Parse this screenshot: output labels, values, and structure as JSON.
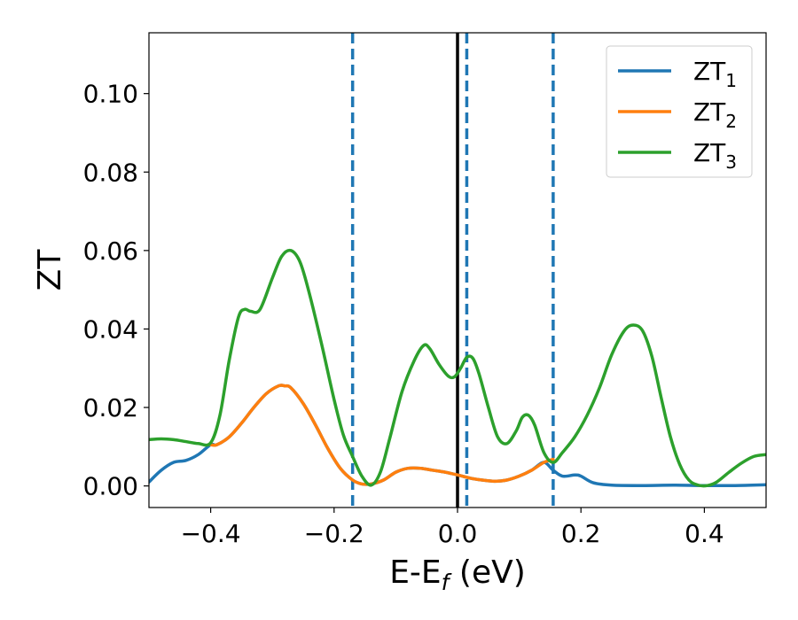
{
  "chart_data": {
    "type": "line",
    "title": "",
    "xlabel": "E-E",
    "xlabel_sub": "f",
    "xlabel_unit": " (eV)",
    "ylabel": "ZT",
    "xlim": [
      -0.5,
      0.5
    ],
    "ylim": [
      -0.0055,
      0.1155
    ],
    "xticks": [
      -0.4,
      -0.2,
      0.0,
      0.2,
      0.4
    ],
    "xtick_labels": [
      "−0.4",
      "−0.2",
      "0.0",
      "0.2",
      "0.4"
    ],
    "yticks": [
      0.0,
      0.02,
      0.04,
      0.06,
      0.08,
      0.1
    ],
    "ytick_labels": [
      "0.00",
      "0.02",
      "0.04",
      "0.06",
      "0.08",
      "0.10"
    ],
    "grid": false,
    "legend_position": "top-right",
    "fermi_line": {
      "x": 0.0,
      "color": "#000000"
    },
    "dashed_vlines": {
      "x": [
        -0.17,
        0.015,
        0.155
      ],
      "color": "#1f77b4"
    },
    "series": [
      {
        "name": "ZT",
        "name_sub": "1",
        "color": "#1f77b4",
        "points": [
          [
            -0.5,
            0.001
          ],
          [
            -0.48,
            0.004
          ],
          [
            -0.46,
            0.006
          ],
          [
            -0.44,
            0.0065
          ],
          [
            -0.42,
            0.008
          ],
          [
            -0.4,
            0.0105
          ],
          [
            -0.39,
            0.0105
          ],
          [
            -0.37,
            0.0125
          ],
          [
            -0.35,
            0.016
          ],
          [
            -0.33,
            0.02
          ],
          [
            -0.31,
            0.0235
          ],
          [
            -0.29,
            0.0255
          ],
          [
            -0.28,
            0.0255
          ],
          [
            -0.27,
            0.025
          ],
          [
            -0.25,
            0.021
          ],
          [
            -0.23,
            0.0155
          ],
          [
            -0.21,
            0.0095
          ],
          [
            -0.19,
            0.0045
          ],
          [
            -0.17,
            0.0015
          ],
          [
            -0.155,
            0.0005
          ],
          [
            -0.14,
            0.0005
          ],
          [
            -0.12,
            0.0015
          ],
          [
            -0.1,
            0.0035
          ],
          [
            -0.08,
            0.0045
          ],
          [
            -0.06,
            0.0045
          ],
          [
            -0.04,
            0.004
          ],
          [
            -0.02,
            0.0035
          ],
          [
            0.0,
            0.0028
          ],
          [
            0.02,
            0.002
          ],
          [
            0.04,
            0.0015
          ],
          [
            0.06,
            0.0012
          ],
          [
            0.08,
            0.0015
          ],
          [
            0.1,
            0.0025
          ],
          [
            0.12,
            0.004
          ],
          [
            0.14,
            0.006
          ],
          [
            0.155,
            0.004
          ],
          [
            0.17,
            0.0025
          ],
          [
            0.19,
            0.0028
          ],
          [
            0.2,
            0.0025
          ],
          [
            0.22,
            0.0008
          ],
          [
            0.25,
            0.0002
          ],
          [
            0.3,
            0.0001
          ],
          [
            0.35,
            0.0002
          ],
          [
            0.4,
            0.0001
          ],
          [
            0.45,
            0.0001
          ],
          [
            0.5,
            0.0003
          ]
        ]
      },
      {
        "name": "ZT",
        "name_sub": "2",
        "color": "#ff7f0e",
        "points": [
          [
            -0.4,
            0.0105
          ],
          [
            -0.39,
            0.0105
          ],
          [
            -0.37,
            0.0125
          ],
          [
            -0.35,
            0.016
          ],
          [
            -0.33,
            0.02
          ],
          [
            -0.31,
            0.0235
          ],
          [
            -0.29,
            0.0255
          ],
          [
            -0.28,
            0.0255
          ],
          [
            -0.27,
            0.025
          ],
          [
            -0.25,
            0.021
          ],
          [
            -0.23,
            0.0155
          ],
          [
            -0.21,
            0.0095
          ],
          [
            -0.19,
            0.0045
          ],
          [
            -0.17,
            0.0015
          ],
          [
            -0.155,
            0.0005
          ],
          [
            -0.14,
            0.0005
          ],
          [
            -0.12,
            0.0015
          ],
          [
            -0.1,
            0.0035
          ],
          [
            -0.08,
            0.0045
          ],
          [
            -0.06,
            0.0045
          ],
          [
            -0.04,
            0.004
          ],
          [
            -0.02,
            0.0035
          ],
          [
            0.0,
            0.0028
          ],
          [
            0.02,
            0.002
          ],
          [
            0.04,
            0.0015
          ],
          [
            0.06,
            0.0012
          ],
          [
            0.08,
            0.0015
          ],
          [
            0.1,
            0.0025
          ],
          [
            0.12,
            0.004
          ],
          [
            0.14,
            0.006
          ],
          [
            0.155,
            0.0068
          ]
        ]
      },
      {
        "name": "ZT",
        "name_sub": "3",
        "color": "#2ca02c",
        "points": [
          [
            -0.5,
            0.0118
          ],
          [
            -0.48,
            0.012
          ],
          [
            -0.46,
            0.0118
          ],
          [
            -0.44,
            0.0113
          ],
          [
            -0.42,
            0.0108
          ],
          [
            -0.4,
            0.011
          ],
          [
            -0.385,
            0.018
          ],
          [
            -0.37,
            0.032
          ],
          [
            -0.355,
            0.043
          ],
          [
            -0.345,
            0.045
          ],
          [
            -0.335,
            0.0445
          ],
          [
            -0.32,
            0.045
          ],
          [
            -0.3,
            0.053
          ],
          [
            -0.285,
            0.0585
          ],
          [
            -0.27,
            0.06
          ],
          [
            -0.255,
            0.057
          ],
          [
            -0.24,
            0.049
          ],
          [
            -0.22,
            0.036
          ],
          [
            -0.2,
            0.022
          ],
          [
            -0.185,
            0.013
          ],
          [
            -0.17,
            0.0075
          ],
          [
            -0.155,
            0.0025
          ],
          [
            -0.14,
            0.0002
          ],
          [
            -0.125,
            0.0035
          ],
          [
            -0.11,
            0.012
          ],
          [
            -0.09,
            0.024
          ],
          [
            -0.07,
            0.032
          ],
          [
            -0.055,
            0.0358
          ],
          [
            -0.045,
            0.035
          ],
          [
            -0.03,
            0.031
          ],
          [
            -0.015,
            0.028
          ],
          [
            -0.005,
            0.0278
          ],
          [
            0.005,
            0.03
          ],
          [
            0.015,
            0.0328
          ],
          [
            0.025,
            0.0325
          ],
          [
            0.035,
            0.0285
          ],
          [
            0.05,
            0.02
          ],
          [
            0.065,
            0.0125
          ],
          [
            0.08,
            0.0108
          ],
          [
            0.095,
            0.014
          ],
          [
            0.105,
            0.0175
          ],
          [
            0.115,
            0.018
          ],
          [
            0.125,
            0.0155
          ],
          [
            0.14,
            0.0085
          ],
          [
            0.155,
            0.006
          ],
          [
            0.17,
            0.0085
          ],
          [
            0.19,
            0.0125
          ],
          [
            0.21,
            0.018
          ],
          [
            0.23,
            0.025
          ],
          [
            0.25,
            0.0335
          ],
          [
            0.27,
            0.0395
          ],
          [
            0.285,
            0.041
          ],
          [
            0.3,
            0.0395
          ],
          [
            0.315,
            0.033
          ],
          [
            0.33,
            0.0225
          ],
          [
            0.345,
            0.0125
          ],
          [
            0.36,
            0.0055
          ],
          [
            0.375,
            0.0015
          ],
          [
            0.39,
            0.0002
          ],
          [
            0.405,
            0.0001
          ],
          [
            0.42,
            0.001
          ],
          [
            0.44,
            0.0035
          ],
          [
            0.46,
            0.0058
          ],
          [
            0.48,
            0.0075
          ],
          [
            0.5,
            0.008
          ]
        ]
      }
    ]
  }
}
